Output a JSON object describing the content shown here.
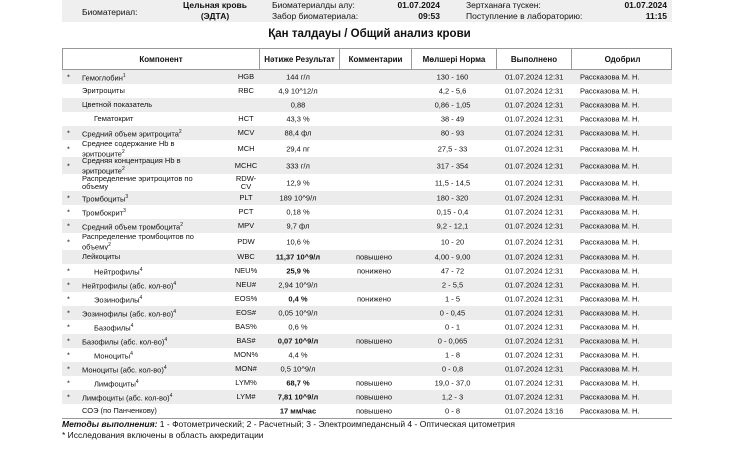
{
  "header": {
    "biomaterial_label": "Биоматериал:",
    "biomaterial": "Цельная кровь (ЭДТА)",
    "taken_label_kz": "Биоматериалды алу:",
    "taken_date": "01.07.2024",
    "taken_label_ru": "Забор биоматериала:",
    "taken_time": "09:53",
    "received_label_kz": "Зертханаға түскен:",
    "received_date": "01.07.2024",
    "received_label_ru": "Поступление в лабораторию:",
    "received_time": "11:15"
  },
  "title": "Қан талдауы / Общий анализ крови",
  "table": {
    "columns": [
      "Компонент",
      "Нәтиже Результат",
      "Комментарии",
      "Мөлшері Норма",
      "Выполнено",
      "Одобрил"
    ],
    "rows": [
      {
        "star": "*",
        "name": "Гемоглобин",
        "ref": "1",
        "code": "HGB",
        "result": "144 г/л",
        "norm": "130 - 160",
        "done": "01.07.2024 12:31",
        "approved": "Рассказова М. Н."
      },
      {
        "name": "Эритроциты",
        "code": "RBC",
        "result": "4,9 10^12/л",
        "norm": "4,2 - 5,6",
        "done": "01.07.2024 12:31",
        "approved": "Рассказова М. Н."
      },
      {
        "name": "Цветной показатель",
        "result": "0,88",
        "norm": "0,86 - 1,05",
        "done": "01.07.2024 12:31",
        "approved": "Рассказова М. Н."
      },
      {
        "name": "Гематокрит",
        "code": "HCT",
        "result": "43,3 %",
        "norm": "38 - 49",
        "done": "01.07.2024 12:31",
        "approved": "Рассказова М. Н."
      },
      {
        "star": "*",
        "name": "Средний объем эритроцита",
        "ref": "2",
        "code": "MCV",
        "result": "88,4 фл",
        "norm": "80 - 93",
        "done": "01.07.2024 12:31",
        "approved": "Рассказова М. Н."
      },
      {
        "star": "*",
        "name": "Среднее содержание Hb в эритроците",
        "ref": "2",
        "code": "MCH",
        "result": "29,4 пг",
        "norm": "27,5 - 33",
        "done": "01.07.2024 12:31",
        "approved": "Рассказова М. Н."
      },
      {
        "star": "*",
        "name": "Средняя концентрация Hb в эритроците",
        "ref": "2",
        "code": "MCHC",
        "result": "333 г/л",
        "norm": "317 - 354",
        "done": "01.07.2024 12:31",
        "approved": "Рассказова М. Н."
      },
      {
        "name": "Распределение эритроцитов по объему",
        "code": "RDW-CV",
        "result": "12,9 %",
        "norm": "11,5 - 14,5",
        "done": "01.07.2024 12:31",
        "approved": "Рассказова М. Н."
      },
      {
        "star": "*",
        "name": "Тромбоциты",
        "ref": "3",
        "code": "PLT",
        "result": "189 10^9/л",
        "norm": "180 - 320",
        "done": "01.07.2024 12:31",
        "approved": "Рассказова М. Н."
      },
      {
        "star": "*",
        "name": "Тромбокрит",
        "ref": "3",
        "code": "PCT",
        "result": "0,18 %",
        "norm": "0,15 - 0,4",
        "done": "01.07.2024 12:31",
        "approved": "Рассказова М. Н."
      },
      {
        "star": "*",
        "name": "Средний объем тромбоцита",
        "ref": "2",
        "code": "MPV",
        "result": "9,7 фл",
        "norm": "9,2 - 12,1",
        "done": "01.07.2024 12:31",
        "approved": "Рассказова М. Н."
      },
      {
        "star": "*",
        "name": "Распределение тромбоцитов по объему",
        "ref": "2",
        "code": "PDW",
        "result": "10,6 %",
        "norm": "10 - 20",
        "done": "01.07.2024 12:31",
        "approved": "Рассказова М. Н."
      },
      {
        "name": "Лейкоциты",
        "code": "WBC",
        "result": "11,37 10^9/л",
        "comment": "повышено",
        "norm": "4,00 - 9,00",
        "done": "01.07.2024 12:31",
        "approved": "Рассказова М. Н."
      },
      {
        "star": "*",
        "name": "Нейтрофилы",
        "ref": "4",
        "code": "NEU%",
        "result": "25,9 %",
        "comment": "понижено",
        "norm": "47 - 72",
        "done": "01.07.2024 12:31",
        "approved": "Рассказова М. Н."
      },
      {
        "star": "*",
        "name": "Нейтрофилы (абс. кол-во)",
        "ref": "4",
        "code": "NEU#",
        "result": "2,94 10^9/л",
        "norm": "2 - 5,5",
        "done": "01.07.2024 12:31",
        "approved": "Рассказова М. Н."
      },
      {
        "star": "*",
        "name": "Эозинофилы",
        "ref": "4",
        "code": "EOS%",
        "result": "0,4 %",
        "comment": "понижено",
        "norm": "1 - 5",
        "done": "01.07.2024 12:31",
        "approved": "Рассказова М. Н."
      },
      {
        "star": "*",
        "name": "Эозинофилы (абс. кол-во)",
        "ref": "4",
        "code": "EOS#",
        "result": "0,05 10^9/л",
        "norm": "0 - 0,45",
        "done": "01.07.2024 12:31",
        "approved": "Рассказова М. Н."
      },
      {
        "star": "*",
        "name": "Базофилы",
        "ref": "4",
        "code": "BAS%",
        "result": "0,6 %",
        "norm": "0 - 1",
        "done": "01.07.2024 12:31",
        "approved": "Рассказова М. Н."
      },
      {
        "star": "*",
        "name": "Базофилы (абс. кол-во)",
        "ref": "4",
        "code": "BAS#",
        "result": "0,07 10^9/л",
        "comment": "повышено",
        "norm": "0 - 0,065",
        "done": "01.07.2024 12:31",
        "approved": "Рассказова М. Н."
      },
      {
        "star": "*",
        "name": "Моноциты",
        "ref": "4",
        "code": "MON%",
        "result": "4,4 %",
        "norm": "1 - 8",
        "done": "01.07.2024 12:31",
        "approved": "Рассказова М. Н."
      },
      {
        "star": "*",
        "name": "Моноциты (абс. кол-во)",
        "ref": "4",
        "code": "MON#",
        "result": "0,5 10^9/л",
        "norm": "0 - 0,8",
        "done": "01.07.2024 12:31",
        "approved": "Рассказова М. Н."
      },
      {
        "star": "*",
        "name": "Лимфоциты",
        "ref": "4",
        "code": "LYM%",
        "result": "68,7 %",
        "comment": "повышено",
        "norm": "19,0 - 37,0",
        "done": "01.07.2024 12:31",
        "approved": "Рассказова М. Н."
      },
      {
        "star": "*",
        "name": "Лимфоциты (абс. кол-во)",
        "ref": "4",
        "code": "LYM#",
        "result": "7,81 10^9/л",
        "comment": "повышено",
        "norm": "1,2 - 3",
        "done": "01.07.2024 12:31",
        "approved": "Рассказова М. Н."
      },
      {
        "name": "СОЭ (по Панченкову)",
        "result": "17 мм/час",
        "comment": "повышено",
        "norm": "0 - 8",
        "done": "01.07.2024 13:16",
        "approved": "Рассказова М. Н."
      }
    ]
  },
  "footer": {
    "methods_label": "Методы выполнения:",
    "methods": "1 - Фотометрический; 2 - Расчетный; 3 - Электроимпедансный 4 - Оптическая цитометрия",
    "accreditation": "* Исследования включены в область аккредитации"
  }
}
